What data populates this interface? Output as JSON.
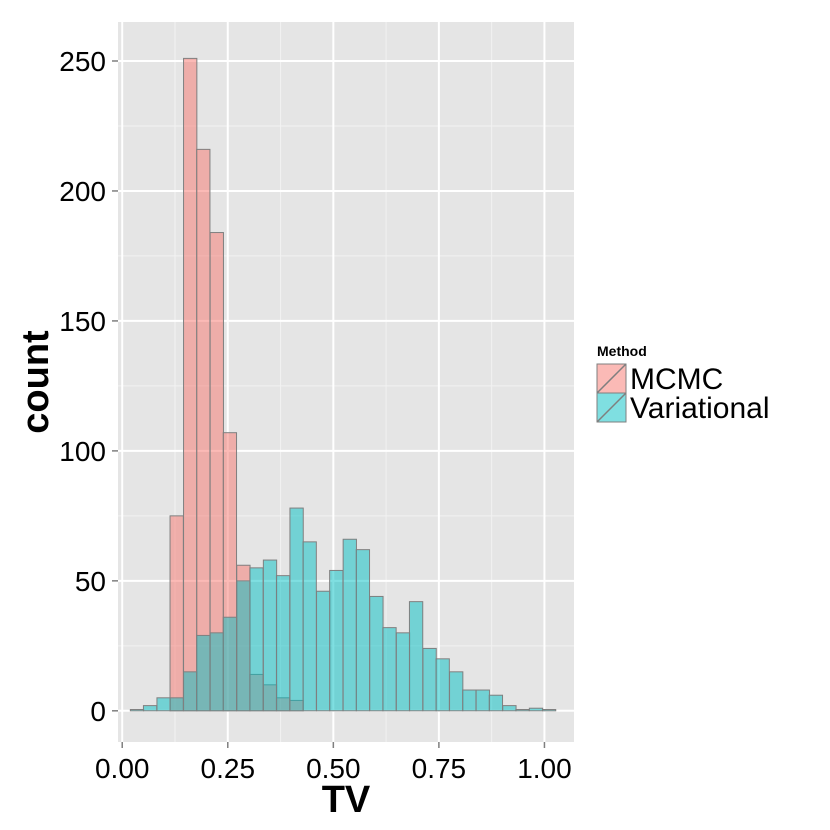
{
  "chart_data": {
    "type": "bar",
    "subtype": "overlapping-histogram",
    "xlabel": "TV",
    "ylabel": "count",
    "xlim": [
      -0.01,
      1.07
    ],
    "ylim": [
      -12,
      265
    ],
    "x_ticks": [
      0.0,
      0.25,
      0.5,
      0.75,
      1.0
    ],
    "x_tick_labels": [
      "0.00",
      "0.25",
      "0.50",
      "0.75",
      "1.00"
    ],
    "y_ticks": [
      0,
      50,
      100,
      150,
      200,
      250
    ],
    "y_tick_labels": [
      "0",
      "50",
      "100",
      "150",
      "200",
      "250"
    ],
    "grid": true,
    "legend": {
      "title": "Method",
      "placement": "right"
    },
    "bin_width": 0.0315,
    "series": [
      {
        "name": "MCMC",
        "color": "#F8766D",
        "bins": [
          {
            "x": 0.129,
            "count": 75
          },
          {
            "x": 0.161,
            "count": 251
          },
          {
            "x": 0.192,
            "count": 216
          },
          {
            "x": 0.224,
            "count": 184
          },
          {
            "x": 0.255,
            "count": 107
          },
          {
            "x": 0.287,
            "count": 56
          },
          {
            "x": 0.318,
            "count": 14
          },
          {
            "x": 0.35,
            "count": 10
          },
          {
            "x": 0.381,
            "count": 5
          },
          {
            "x": 0.413,
            "count": 4
          }
        ]
      },
      {
        "name": "Variational",
        "color": "#00BFC4",
        "bins": [
          {
            "x": 0.035,
            "count": 0.5
          },
          {
            "x": 0.066,
            "count": 2
          },
          {
            "x": 0.098,
            "count": 5
          },
          {
            "x": 0.129,
            "count": 5
          },
          {
            "x": 0.161,
            "count": 15
          },
          {
            "x": 0.192,
            "count": 29
          },
          {
            "x": 0.224,
            "count": 30
          },
          {
            "x": 0.255,
            "count": 36
          },
          {
            "x": 0.287,
            "count": 50
          },
          {
            "x": 0.318,
            "count": 55
          },
          {
            "x": 0.35,
            "count": 58
          },
          {
            "x": 0.381,
            "count": 52
          },
          {
            "x": 0.413,
            "count": 78
          },
          {
            "x": 0.444,
            "count": 65
          },
          {
            "x": 0.476,
            "count": 46
          },
          {
            "x": 0.507,
            "count": 54
          },
          {
            "x": 0.539,
            "count": 66
          },
          {
            "x": 0.57,
            "count": 62
          },
          {
            "x": 0.602,
            "count": 44
          },
          {
            "x": 0.633,
            "count": 32
          },
          {
            "x": 0.665,
            "count": 30
          },
          {
            "x": 0.696,
            "count": 42
          },
          {
            "x": 0.728,
            "count": 24
          },
          {
            "x": 0.759,
            "count": 20
          },
          {
            "x": 0.791,
            "count": 15
          },
          {
            "x": 0.822,
            "count": 8
          },
          {
            "x": 0.854,
            "count": 8
          },
          {
            "x": 0.885,
            "count": 6
          },
          {
            "x": 0.917,
            "count": 2
          },
          {
            "x": 0.948,
            "count": 0.5
          },
          {
            "x": 0.98,
            "count": 1
          },
          {
            "x": 1.011,
            "count": 0.5
          }
        ]
      }
    ]
  }
}
